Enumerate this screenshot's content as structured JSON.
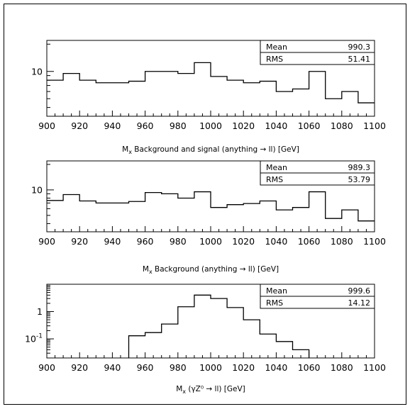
{
  "chart_data": [
    {
      "type": "histogram",
      "xlabel": "M_x Background and signal (anything → ll) [GeV]",
      "xlim": [
        900,
        1100
      ],
      "x_ticks": [
        900,
        920,
        940,
        960,
        980,
        1000,
        1020,
        1040,
        1060,
        1080,
        1100
      ],
      "y_scale": "log",
      "ylim": [
        3.2,
        22
      ],
      "y_tick_labels": [
        {
          "value": 10,
          "label": "10"
        }
      ],
      "bin_edges": [
        900,
        910,
        920,
        930,
        940,
        950,
        960,
        970,
        980,
        990,
        1000,
        1010,
        1020,
        1030,
        1040,
        1050,
        1060,
        1070,
        1080,
        1090,
        1100
      ],
      "values": [
        8.0,
        9.5,
        8.0,
        7.5,
        7.5,
        7.8,
        10.0,
        10.0,
        9.5,
        12.5,
        8.8,
        8.0,
        7.5,
        7.8,
        6.0,
        6.4,
        10.0,
        5.0,
        6.0,
        4.5
      ],
      "stats": {
        "mean_label": "Mean",
        "mean": "990.3",
        "rms_label": "RMS",
        "rms": "51.41"
      }
    },
    {
      "type": "histogram",
      "xlabel": "M_x Background (anything → ll) [GeV]",
      "xlim": [
        900,
        1100
      ],
      "x_ticks": [
        900,
        920,
        940,
        960,
        980,
        1000,
        1020,
        1040,
        1060,
        1080,
        1100
      ],
      "y_scale": "log",
      "ylim": [
        3.2,
        22
      ],
      "y_tick_labels": [
        {
          "value": 10,
          "label": "10"
        }
      ],
      "bin_edges": [
        900,
        910,
        920,
        930,
        940,
        950,
        960,
        970,
        980,
        990,
        1000,
        1010,
        1020,
        1030,
        1040,
        1050,
        1060,
        1070,
        1080,
        1090,
        1100
      ],
      "values": [
        7.5,
        8.8,
        7.4,
        7.0,
        7.0,
        7.3,
        9.3,
        9.0,
        8.0,
        9.5,
        6.2,
        6.7,
        6.9,
        7.4,
        5.8,
        6.2,
        9.5,
        4.6,
        5.8,
        4.3
      ],
      "stats": {
        "mean_label": "Mean",
        "mean": "989.3",
        "rms_label": "RMS",
        "rms": "53.79"
      }
    },
    {
      "type": "histogram",
      "xlabel": "M_x (γZ⁰ → ll) [GeV]",
      "xlim": [
        900,
        1100
      ],
      "x_ticks": [
        900,
        920,
        940,
        960,
        980,
        1000,
        1020,
        1040,
        1060,
        1080,
        1100
      ],
      "y_scale": "log",
      "ylim": [
        0.02,
        10
      ],
      "y_tick_labels": [
        {
          "value": 1,
          "label": "1"
        },
        {
          "value": 0.1,
          "label": "10⁻¹"
        }
      ],
      "bin_edges": [
        950,
        960,
        970,
        980,
        990,
        1000,
        1010,
        1020,
        1030,
        1040,
        1050,
        1060
      ],
      "values": [
        0.13,
        0.17,
        0.35,
        1.5,
        4.0,
        3.0,
        1.4,
        0.5,
        0.15,
        0.08,
        0.04
      ],
      "stats": {
        "mean_label": "Mean",
        "mean": "999.6",
        "rms_label": "RMS",
        "rms": "14.12"
      }
    }
  ]
}
